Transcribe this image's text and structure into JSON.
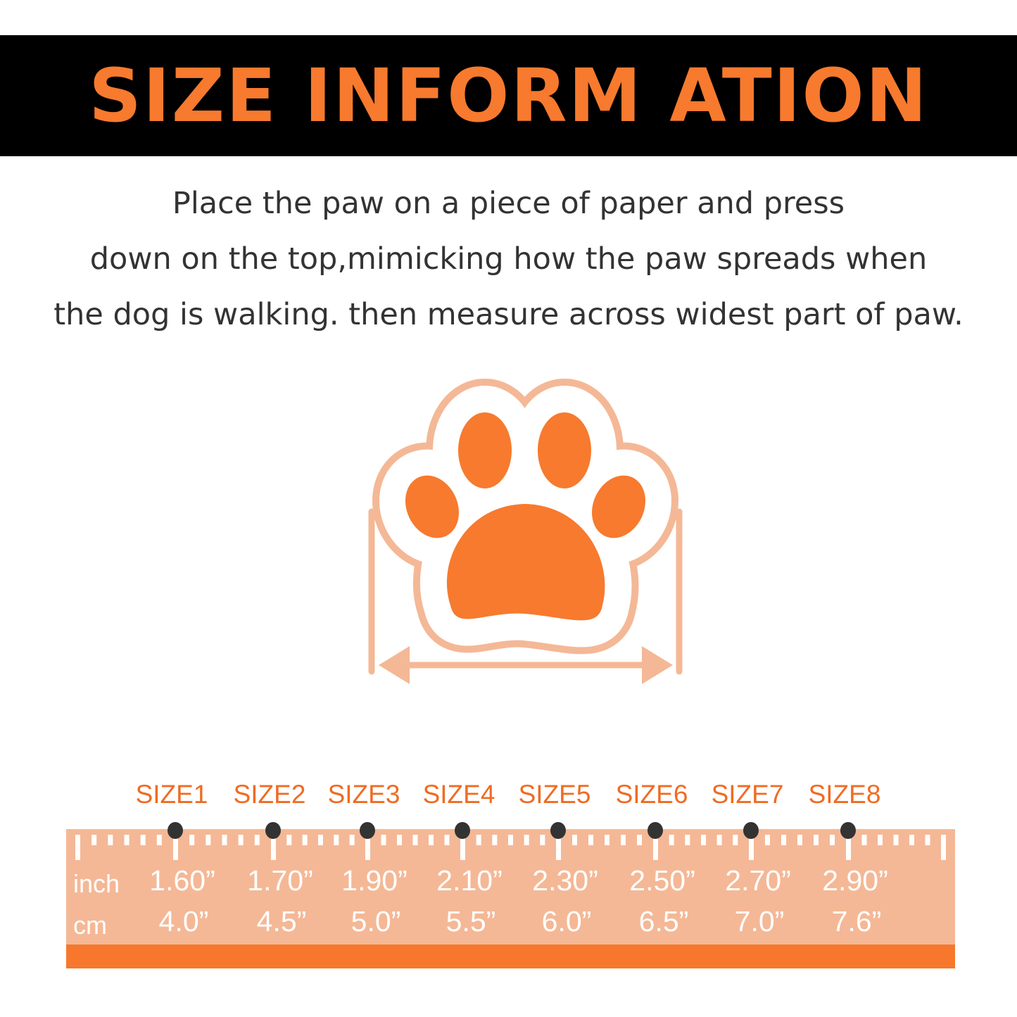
{
  "header": {
    "title": "SIZE INFORM ATION"
  },
  "instructions": [
    "Place the paw on a piece of paper and press",
    "down on the top,mimicking how the paw spreads when",
    "the dog is walking. then measure across widest part of paw."
  ],
  "colors": {
    "accent": "#f77a2e",
    "light": "#f4b896",
    "dot": "#333333"
  },
  "illustration": {
    "icon": "paw-print-icon",
    "measure": "width-arrow-icon"
  },
  "size_chart": {
    "inch_label": "inch",
    "cm_label": "cm",
    "sizes": [
      {
        "name": "SIZE1",
        "inch": "1.60”",
        "cm": "4.0”"
      },
      {
        "name": "SIZE2",
        "inch": "1.70”",
        "cm": "4.5”"
      },
      {
        "name": "SIZE3",
        "inch": "1.90”",
        "cm": "5.0”"
      },
      {
        "name": "SIZE4",
        "inch": "2.10”",
        "cm": "5.5”"
      },
      {
        "name": "SIZE5",
        "inch": "2.30”",
        "cm": "6.0”"
      },
      {
        "name": "SIZE6",
        "inch": "2.50”",
        "cm": "6.5”"
      },
      {
        "name": "SIZE7",
        "inch": "2.70”",
        "cm": "7.0”"
      },
      {
        "name": "SIZE8",
        "inch": "2.90”",
        "cm": "7.6”"
      }
    ]
  }
}
